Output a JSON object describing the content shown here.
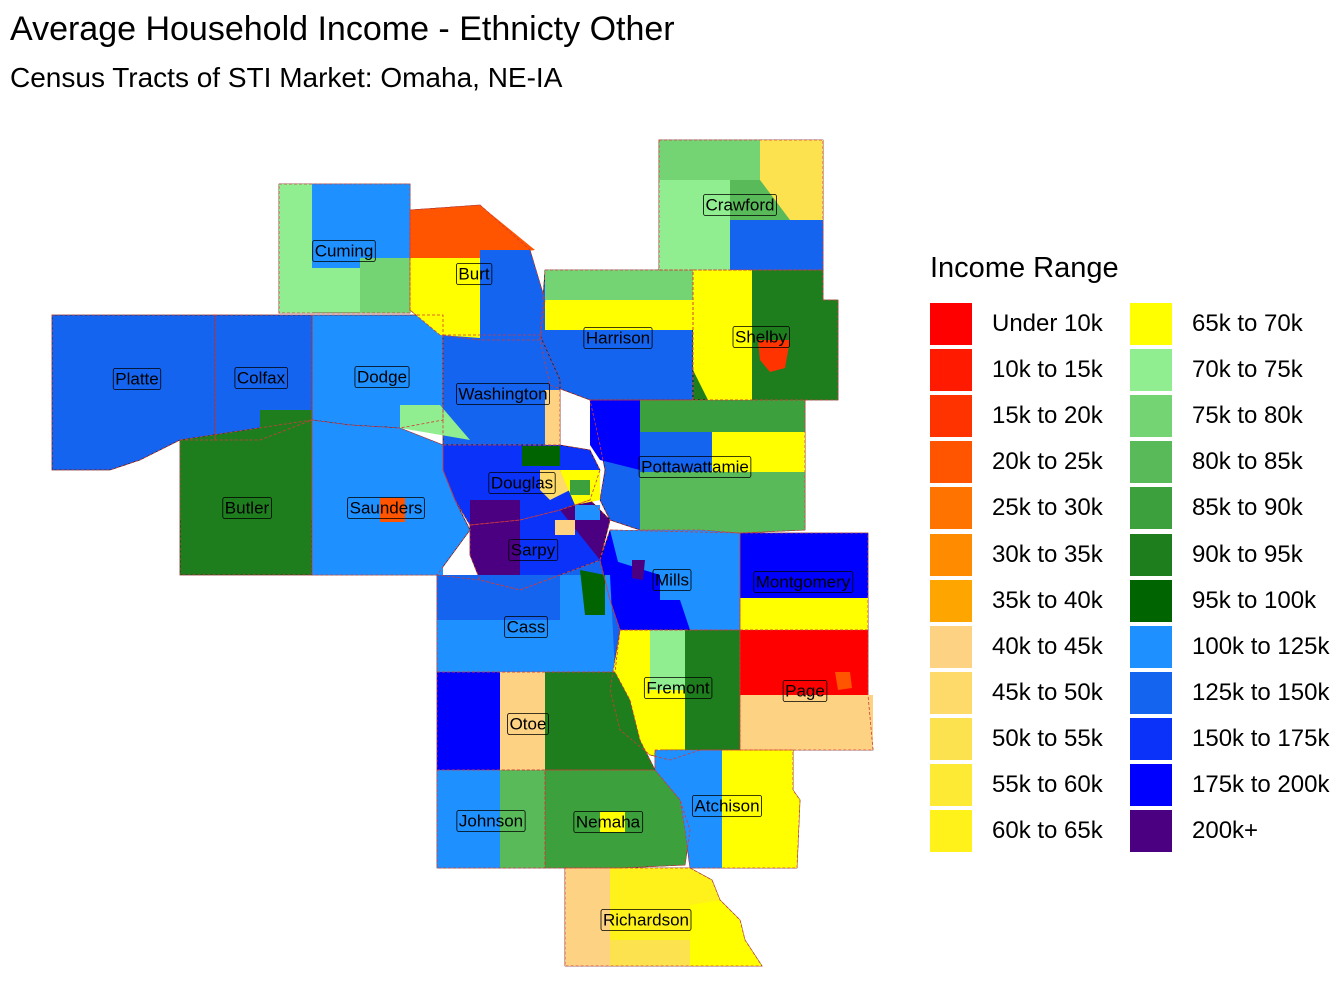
{
  "title": "Average Household Income - Ethnicty Other",
  "subtitle": "Census Tracts of STI Market: Omaha, NE-IA",
  "legend": {
    "title": "Income Range",
    "items": [
      {
        "label": "Under 10k",
        "color": "#ff0000"
      },
      {
        "label": "10k to 15k",
        "color": "#ff1a00"
      },
      {
        "label": "15k to 20k",
        "color": "#ff3300"
      },
      {
        "label": "20k to 25k",
        "color": "#ff5500"
      },
      {
        "label": "25k to 30k",
        "color": "#ff7300"
      },
      {
        "label": "30k to 35k",
        "color": "#ff8c00"
      },
      {
        "label": "35k to 40k",
        "color": "#ffa500"
      },
      {
        "label": "40k to 45k",
        "color": "#fdd282"
      },
      {
        "label": "45k to 50k",
        "color": "#fdda6a"
      },
      {
        "label": "50k to 55k",
        "color": "#fde24f"
      },
      {
        "label": "55k to 60k",
        "color": "#fdea35"
      },
      {
        "label": "60k to 65k",
        "color": "#fef21a"
      },
      {
        "label": "65k to 70k",
        "color": "#ffff00"
      },
      {
        "label": "70k to 75k",
        "color": "#90ee90"
      },
      {
        "label": "75k to 80k",
        "color": "#74d474"
      },
      {
        "label": "80k to 85k",
        "color": "#58ba58"
      },
      {
        "label": "85k to 90k",
        "color": "#3ca03c"
      },
      {
        "label": "90k to 95k",
        "color": "#1e7e1e"
      },
      {
        "label": "95k to 100k",
        "color": "#006400"
      },
      {
        "label": "100k to 125k",
        "color": "#1e90ff"
      },
      {
        "label": "125k to 150k",
        "color": "#1464f0"
      },
      {
        "label": "150k to 175k",
        "color": "#0a32f8"
      },
      {
        "label": "175k to 200k",
        "color": "#0000ff"
      },
      {
        "label": "200k+",
        "color": "#4b0082"
      }
    ]
  },
  "counties": [
    {
      "id": "cuming",
      "name": "Cuming",
      "income_range": "70k to 75k"
    },
    {
      "id": "burt",
      "name": "Burt",
      "income_range": "65k to 70k"
    },
    {
      "id": "crawford",
      "name": "Crawford",
      "income_range": "80k to 85k"
    },
    {
      "id": "harrison",
      "name": "Harrison",
      "income_range": "125k to 150k"
    },
    {
      "id": "shelby",
      "name": "Shelby",
      "income_range": "90k to 95k"
    },
    {
      "id": "platte",
      "name": "Platte",
      "income_range": "125k to 150k"
    },
    {
      "id": "colfax",
      "name": "Colfax",
      "income_range": "125k to 150k"
    },
    {
      "id": "dodge",
      "name": "Dodge",
      "income_range": "100k to 125k"
    },
    {
      "id": "washington",
      "name": "Washington",
      "income_range": "125k to 150k"
    },
    {
      "id": "douglas",
      "name": "Douglas",
      "income_range": "150k to 175k"
    },
    {
      "id": "pottawattamie",
      "name": "Pottawattamie",
      "income_range": "125k to 150k"
    },
    {
      "id": "butler",
      "name": "Butler",
      "income_range": "90k to 95k"
    },
    {
      "id": "saunders",
      "name": "Saunders",
      "income_range": "100k to 125k"
    },
    {
      "id": "sarpy",
      "name": "Sarpy",
      "income_range": "200k+"
    },
    {
      "id": "mills",
      "name": "Mills",
      "income_range": "175k to 200k"
    },
    {
      "id": "montgomery",
      "name": "Montgomery",
      "income_range": "175k to 200k"
    },
    {
      "id": "cass",
      "name": "Cass",
      "income_range": "125k to 150k"
    },
    {
      "id": "fremont",
      "name": "Fremont",
      "income_range": "65k to 70k"
    },
    {
      "id": "page",
      "name": "Page",
      "income_range": "Under 10k"
    },
    {
      "id": "otoe",
      "name": "Otoe",
      "income_range": "90k to 95k"
    },
    {
      "id": "johnson",
      "name": "Johnson",
      "income_range": "100k to 125k"
    },
    {
      "id": "nemaha",
      "name": "Nemaha",
      "income_range": "85k to 90k"
    },
    {
      "id": "atchison",
      "name": "Atchison",
      "income_range": "100k to 125k"
    },
    {
      "id": "richardson",
      "name": "Richardson",
      "income_range": "60k to 65k"
    }
  ]
}
